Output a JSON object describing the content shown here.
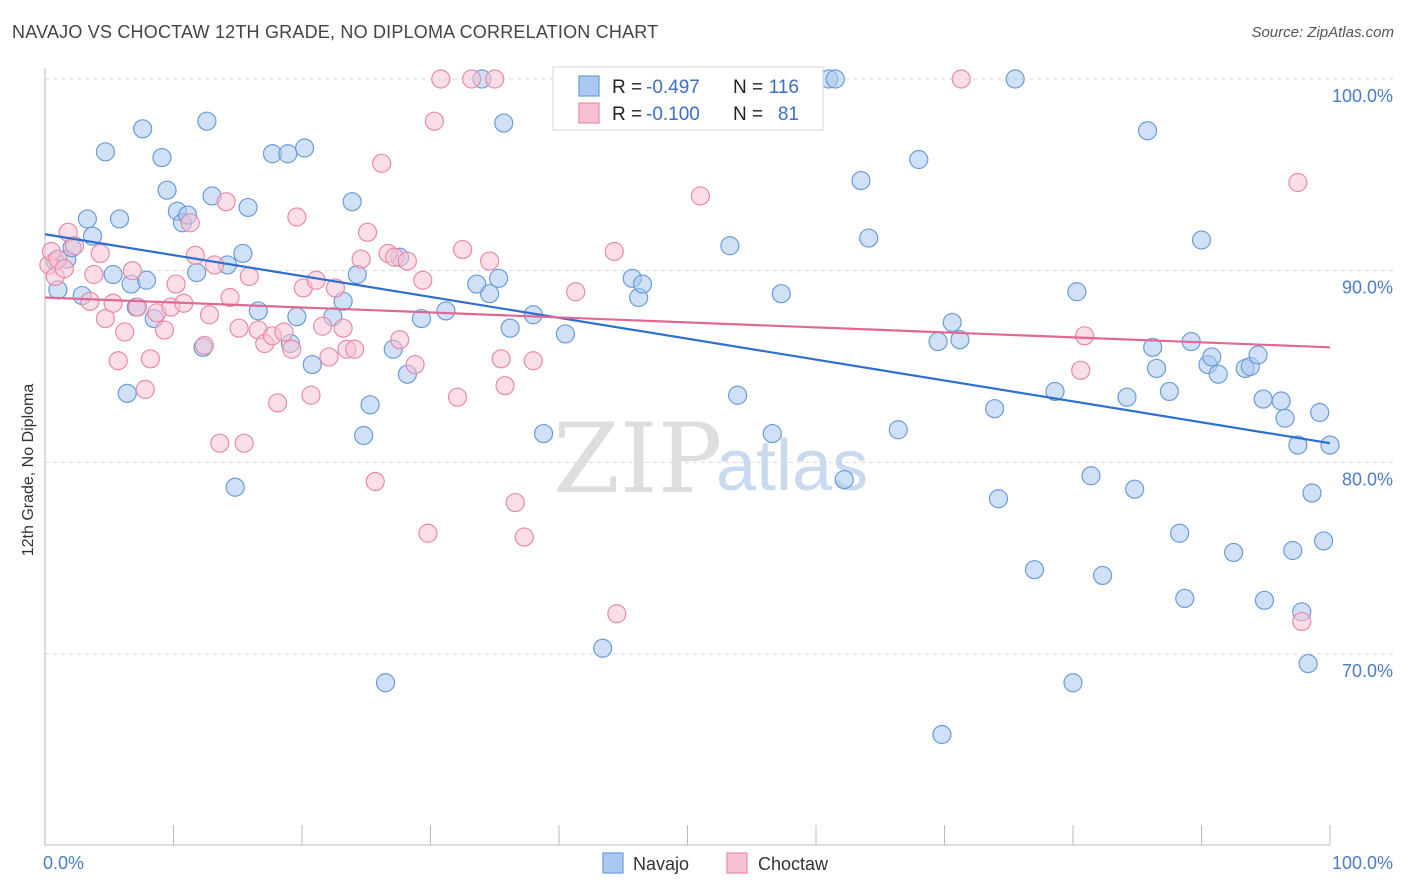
{
  "header": {
    "title": "NAVAJO VS CHOCTAW 12TH GRADE, NO DIPLOMA CORRELATION CHART",
    "source": "Source: ZipAtlas.com"
  },
  "watermark": {
    "zip": "ZIP",
    "atlas": "atlas"
  },
  "legend_box": {
    "rows": [
      {
        "r_label": "R =",
        "r_value": "-0.497",
        "n_label": "N =",
        "n_value": "116"
      },
      {
        "r_label": "R =",
        "r_value": "-0.100",
        "n_label": "N =",
        "n_value": "81"
      }
    ]
  },
  "colors": {
    "navajo_fill": "#aac8f0",
    "navajo_stroke": "#6b9bd8",
    "navajo_line": "#2e6fd0",
    "choctaw_fill": "#f7c3d3",
    "choctaw_stroke": "#e88aa8",
    "choctaw_line": "#e06893",
    "grid": "#d9d9d9",
    "axis_label": "#4a7cc9"
  },
  "chart_data": {
    "type": "scatter",
    "title": "NAVAJO VS CHOCTAW 12TH GRADE, NO DIPLOMA CORRELATION CHART",
    "xlabel": "",
    "ylabel": "12th Grade, No Diploma",
    "xlim": [
      0,
      100
    ],
    "ylim": [
      60,
      102
    ],
    "x_tick_labels": [
      "0.0%",
      "100.0%"
    ],
    "y_ticks": [
      70,
      80,
      90,
      100
    ],
    "y_tick_labels": [
      "70.0%",
      "80.0%",
      "90.0%",
      "100.0%"
    ],
    "grid": true,
    "legend_position": "bottom",
    "series": [
      {
        "name": "Navajo",
        "R": -0.497,
        "N": 116,
        "trend": {
          "x": [
            0,
            100
          ],
          "y": [
            91.9,
            81.0
          ]
        },
        "points": [
          [
            0.8,
            90.5
          ],
          [
            1.0,
            89.0
          ],
          [
            1.7,
            90.6
          ],
          [
            2.1,
            91.2
          ],
          [
            2.9,
            88.7
          ],
          [
            3.3,
            92.7
          ],
          [
            3.7,
            91.8
          ],
          [
            4.7,
            96.2
          ],
          [
            5.3,
            89.8
          ],
          [
            5.8,
            92.7
          ],
          [
            6.4,
            83.6
          ],
          [
            6.7,
            89.3
          ],
          [
            7.1,
            88.1
          ],
          [
            7.6,
            97.4
          ],
          [
            7.9,
            89.5
          ],
          [
            8.5,
            87.5
          ],
          [
            9.1,
            95.9
          ],
          [
            9.5,
            94.2
          ],
          [
            10.3,
            93.1
          ],
          [
            10.7,
            92.5
          ],
          [
            11.1,
            92.9
          ],
          [
            11.8,
            89.9
          ],
          [
            12.3,
            86.0
          ],
          [
            12.6,
            97.8
          ],
          [
            13.0,
            93.9
          ],
          [
            14.2,
            90.3
          ],
          [
            14.8,
            78.7
          ],
          [
            15.4,
            90.9
          ],
          [
            15.8,
            93.3
          ],
          [
            16.6,
            87.9
          ],
          [
            17.7,
            96.1
          ],
          [
            18.9,
            96.1
          ],
          [
            19.1,
            86.2
          ],
          [
            19.6,
            87.6
          ],
          [
            20.2,
            96.4
          ],
          [
            20.8,
            85.1
          ],
          [
            22.4,
            87.6
          ],
          [
            23.2,
            88.4
          ],
          [
            23.9,
            93.6
          ],
          [
            24.3,
            89.8
          ],
          [
            24.8,
            81.4
          ],
          [
            25.3,
            83.0
          ],
          [
            26.5,
            68.5
          ],
          [
            27.1,
            85.9
          ],
          [
            27.6,
            90.7
          ],
          [
            28.2,
            84.6
          ],
          [
            29.3,
            87.5
          ],
          [
            31.2,
            87.9
          ],
          [
            33.6,
            89.3
          ],
          [
            34.0,
            100.0
          ],
          [
            34.6,
            88.8
          ],
          [
            35.3,
            89.6
          ],
          [
            35.7,
            97.7
          ],
          [
            36.2,
            87.0
          ],
          [
            38.0,
            87.7
          ],
          [
            38.8,
            81.5
          ],
          [
            40.5,
            86.7
          ],
          [
            43.4,
            70.3
          ],
          [
            45.7,
            89.6
          ],
          [
            46.2,
            88.6
          ],
          [
            46.5,
            89.3
          ],
          [
            52.2,
            100.0
          ],
          [
            53.3,
            91.3
          ],
          [
            53.9,
            83.5
          ],
          [
            56.6,
            81.5
          ],
          [
            57.3,
            88.8
          ],
          [
            61.0,
            100.0
          ],
          [
            61.5,
            100.0
          ],
          [
            62.2,
            79.1
          ],
          [
            63.5,
            94.7
          ],
          [
            64.1,
            91.7
          ],
          [
            66.4,
            81.7
          ],
          [
            68.0,
            95.8
          ],
          [
            69.8,
            65.8
          ],
          [
            69.5,
            86.3
          ],
          [
            70.6,
            87.3
          ],
          [
            71.2,
            86.4
          ],
          [
            74.2,
            78.1
          ],
          [
            73.9,
            82.8
          ],
          [
            75.5,
            100.0
          ],
          [
            77.0,
            74.4
          ],
          [
            78.6,
            83.7
          ],
          [
            80.0,
            68.5
          ],
          [
            80.3,
            88.9
          ],
          [
            81.4,
            79.3
          ],
          [
            82.3,
            74.1
          ],
          [
            84.2,
            83.4
          ],
          [
            84.8,
            78.6
          ],
          [
            85.8,
            97.3
          ],
          [
            86.2,
            86.0
          ],
          [
            86.5,
            84.9
          ],
          [
            87.5,
            83.7
          ],
          [
            88.3,
            76.3
          ],
          [
            88.7,
            72.9
          ],
          [
            89.2,
            86.3
          ],
          [
            90.0,
            91.6
          ],
          [
            90.5,
            85.1
          ],
          [
            90.8,
            85.5
          ],
          [
            91.3,
            84.6
          ],
          [
            92.5,
            75.3
          ],
          [
            93.4,
            84.9
          ],
          [
            93.8,
            85.0
          ],
          [
            94.4,
            85.6
          ],
          [
            94.8,
            83.3
          ],
          [
            94.9,
            72.8
          ],
          [
            96.2,
            83.2
          ],
          [
            96.5,
            82.3
          ],
          [
            97.1,
            75.4
          ],
          [
            97.5,
            80.9
          ],
          [
            97.8,
            72.2
          ],
          [
            98.3,
            69.5
          ],
          [
            98.6,
            78.4
          ],
          [
            99.2,
            82.6
          ],
          [
            99.5,
            75.9
          ],
          [
            100.0,
            80.9
          ]
        ]
      },
      {
        "name": "Choctaw",
        "R": -0.1,
        "N": 81,
        "trend": {
          "x": [
            0,
            100
          ],
          "y": [
            88.6,
            86.0
          ]
        },
        "points": [
          [
            0.3,
            90.3
          ],
          [
            0.5,
            91.0
          ],
          [
            0.8,
            89.7
          ],
          [
            1.0,
            90.6
          ],
          [
            1.5,
            90.1
          ],
          [
            1.8,
            92.0
          ],
          [
            2.3,
            91.3
          ],
          [
            3.5,
            88.4
          ],
          [
            3.8,
            89.8
          ],
          [
            4.3,
            90.9
          ],
          [
            4.7,
            87.5
          ],
          [
            5.3,
            88.3
          ],
          [
            5.7,
            85.3
          ],
          [
            6.2,
            86.8
          ],
          [
            6.8,
            90.0
          ],
          [
            7.2,
            88.1
          ],
          [
            7.8,
            83.8
          ],
          [
            8.2,
            85.4
          ],
          [
            8.7,
            87.8
          ],
          [
            9.3,
            86.9
          ],
          [
            9.8,
            88.1
          ],
          [
            10.2,
            89.3
          ],
          [
            10.8,
            88.3
          ],
          [
            11.3,
            92.5
          ],
          [
            11.7,
            90.8
          ],
          [
            12.4,
            86.1
          ],
          [
            12.8,
            87.7
          ],
          [
            13.2,
            90.3
          ],
          [
            13.6,
            81.0
          ],
          [
            14.1,
            93.6
          ],
          [
            14.4,
            88.6
          ],
          [
            15.1,
            87.0
          ],
          [
            15.5,
            81.0
          ],
          [
            15.9,
            89.7
          ],
          [
            16.6,
            86.9
          ],
          [
            17.1,
            86.2
          ],
          [
            17.7,
            86.6
          ],
          [
            18.1,
            83.1
          ],
          [
            18.6,
            86.8
          ],
          [
            19.2,
            85.9
          ],
          [
            19.6,
            92.8
          ],
          [
            20.1,
            89.1
          ],
          [
            20.7,
            83.5
          ],
          [
            21.1,
            89.5
          ],
          [
            21.6,
            87.1
          ],
          [
            22.1,
            85.5
          ],
          [
            22.6,
            89.1
          ],
          [
            23.2,
            87.0
          ],
          [
            23.5,
            85.9
          ],
          [
            24.1,
            85.9
          ],
          [
            24.6,
            90.6
          ],
          [
            25.1,
            92.0
          ],
          [
            25.7,
            79.0
          ],
          [
            26.2,
            95.6
          ],
          [
            26.7,
            90.9
          ],
          [
            27.2,
            90.7
          ],
          [
            27.6,
            86.4
          ],
          [
            28.2,
            90.5
          ],
          [
            28.8,
            85.1
          ],
          [
            29.4,
            89.5
          ],
          [
            29.8,
            76.3
          ],
          [
            30.3,
            97.8
          ],
          [
            30.8,
            100.0
          ],
          [
            32.1,
            83.4
          ],
          [
            32.5,
            91.1
          ],
          [
            33.2,
            100.0
          ],
          [
            34.6,
            90.5
          ],
          [
            35.0,
            100.0
          ],
          [
            35.5,
            85.4
          ],
          [
            35.8,
            84.0
          ],
          [
            36.6,
            77.9
          ],
          [
            37.3,
            76.1
          ],
          [
            38.0,
            85.3
          ],
          [
            41.3,
            88.9
          ],
          [
            44.3,
            91.0
          ],
          [
            44.5,
            72.1
          ],
          [
            51.0,
            93.9
          ],
          [
            71.3,
            100.0
          ],
          [
            80.6,
            84.8
          ],
          [
            80.9,
            86.6
          ],
          [
            97.5,
            94.6
          ],
          [
            97.8,
            71.7
          ]
        ]
      }
    ]
  },
  "bottom_legend": {
    "items": [
      "Navajo",
      "Choctaw"
    ]
  }
}
